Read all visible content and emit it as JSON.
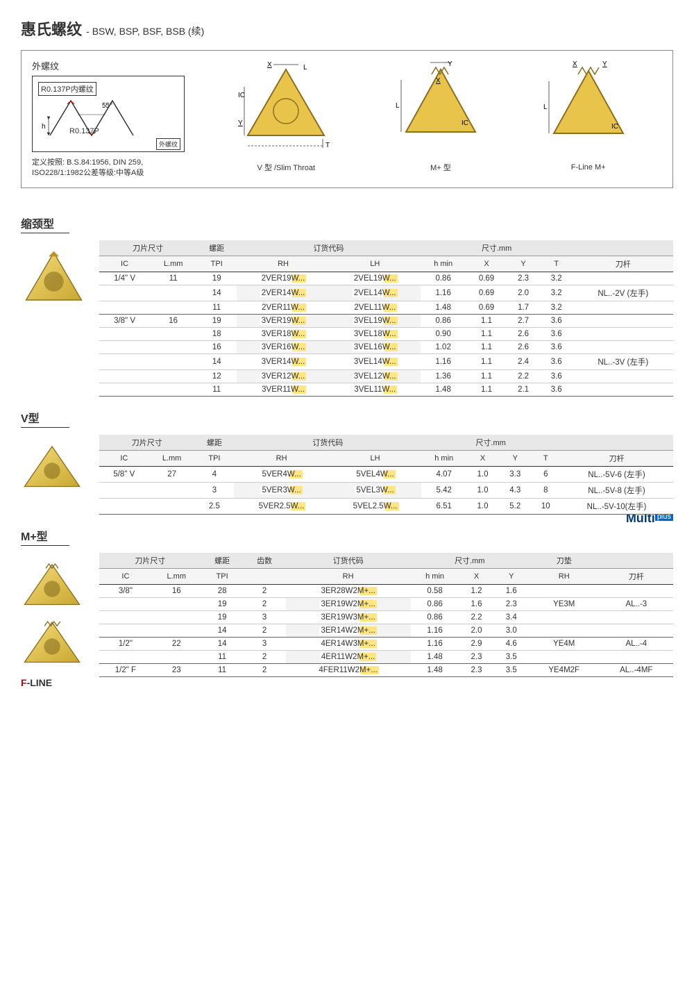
{
  "header": {
    "title": "惠氏螺纹",
    "subtitle": "- BSW, BSP, BSF, BSB (续)"
  },
  "diagram": {
    "ext_thread_label": "外螺纹",
    "inner_thread_label": "R0.137P内螺纹",
    "angle": "55°",
    "h_label": "h",
    "outer_thread_label": "R0.137P",
    "ext_label": "外螺纹",
    "def1": "定义按照: B.S.84:1956, DIN 259,",
    "def2": "ISO228/1:1982公差等级:中等A级",
    "labels": {
      "L": "L",
      "X": "X",
      "Y": "Y",
      "IC": "IC",
      "T": "T"
    },
    "type1": "V 型 /Slim Throat",
    "type2": "M+ 型",
    "type3": "F-Line M+"
  },
  "table1": {
    "title": "缩颈型",
    "headers": {
      "size": "刀片尺寸",
      "pitch": "螺距",
      "order": "订货代码",
      "dim": "尺寸.mm",
      "ic": "IC",
      "lmm": "L.mm",
      "tpi": "TPI",
      "rh": "RH",
      "lh": "LH",
      "hmin": "h min",
      "x": "X",
      "y": "Y",
      "t": "T",
      "tool": "刀杆"
    },
    "rows": [
      {
        "ic": "1/4\" V",
        "lmm": "11",
        "tpi": "19",
        "rh": "2VER19W...",
        "lh": "2VEL19W...",
        "hmin": "0.86",
        "x": "0.69",
        "y": "2.3",
        "t": "3.2",
        "tool": ""
      },
      {
        "ic": "",
        "lmm": "",
        "tpi": "14",
        "rh": "2VER14W...",
        "lh": "2VEL14W...",
        "hmin": "1.16",
        "x": "0.69",
        "y": "2.0",
        "t": "3.2",
        "tool": "NL..-2V (左手)"
      },
      {
        "ic": "",
        "lmm": "",
        "tpi": "11",
        "rh": "2VER11W...",
        "lh": "2VEL11W...",
        "hmin": "1.48",
        "x": "0.69",
        "y": "1.7",
        "t": "3.2",
        "tool": "",
        "end": true
      },
      {
        "ic": "3/8\" V",
        "lmm": "16",
        "tpi": "19",
        "rh": "3VER19W...",
        "lh": "3VEL19W...",
        "hmin": "0.86",
        "x": "1.1",
        "y": "2.7",
        "t": "3.6",
        "tool": ""
      },
      {
        "ic": "",
        "lmm": "",
        "tpi": "18",
        "rh": "3VER18W...",
        "lh": "3VEL18W...",
        "hmin": "0.90",
        "x": "1.1",
        "y": "2.6",
        "t": "3.6",
        "tool": ""
      },
      {
        "ic": "",
        "lmm": "",
        "tpi": "16",
        "rh": "3VER16W...",
        "lh": "3VEL16W...",
        "hmin": "1.02",
        "x": "1.1",
        "y": "2.6",
        "t": "3.6",
        "tool": ""
      },
      {
        "ic": "",
        "lmm": "",
        "tpi": "14",
        "rh": "3VER14W...",
        "lh": "3VEL14W...",
        "hmin": "1.16",
        "x": "1.1",
        "y": "2.4",
        "t": "3.6",
        "tool": "NL..-3V (左手)"
      },
      {
        "ic": "",
        "lmm": "",
        "tpi": "12",
        "rh": "3VER12W...",
        "lh": "3VEL12W...",
        "hmin": "1.36",
        "x": "1.1",
        "y": "2.2",
        "t": "3.6",
        "tool": ""
      },
      {
        "ic": "",
        "lmm": "",
        "tpi": "11",
        "rh": "3VER11W...",
        "lh": "3VEL11W...",
        "hmin": "1.48",
        "x": "1.1",
        "y": "2.1",
        "t": "3.6",
        "tool": "",
        "end": true
      }
    ]
  },
  "table2": {
    "title": "V型",
    "headers": {
      "size": "刀片尺寸",
      "pitch": "螺距",
      "order": "订货代码",
      "dim": "尺寸.mm",
      "ic": "IC",
      "lmm": "L.mm",
      "tpi": "TPI",
      "rh": "RH",
      "lh": "LH",
      "hmin": "h min",
      "x": "X",
      "y": "Y",
      "t": "T",
      "tool": "刀杆"
    },
    "rows": [
      {
        "ic": "5/8\" V",
        "lmm": "27",
        "tpi": "4",
        "rh": "5VER4W...",
        "lh": "5VEL4W...",
        "hmin": "4.07",
        "x": "1.0",
        "y": "3.3",
        "t": "6",
        "tool": "NL..-5V-6 (左手)"
      },
      {
        "ic": "",
        "lmm": "",
        "tpi": "3",
        "rh": "5VER3W...",
        "lh": "5VEL3W...",
        "hmin": "5.42",
        "x": "1.0",
        "y": "4.3",
        "t": "8",
        "tool": "NL..-5V-8 (左手)"
      },
      {
        "ic": "",
        "lmm": "",
        "tpi": "2.5",
        "rh": "5VER2.5W...",
        "lh": "5VEL2.5W...",
        "hmin": "6.51",
        "x": "1.0",
        "y": "5.2",
        "t": "10",
        "tool": "NL..-5V-10(左手)",
        "end": true
      }
    ]
  },
  "table3": {
    "title": "M+型",
    "logo": "Multi",
    "logo_plus": "plus",
    "headers": {
      "size": "刀片尺寸",
      "pitch": "螺距",
      "teeth": "齿数",
      "order": "订货代码",
      "dim": "尺寸.mm",
      "pad": "刀垫",
      "ic": "IC",
      "lmm": "L.mm",
      "tpi": "TPI",
      "rh": "RH",
      "hmin": "h min",
      "x": "X",
      "y": "Y",
      "rhpad": "RH",
      "tool": "刀杆"
    },
    "rows": [
      {
        "ic": "3/8\"",
        "lmm": "16",
        "tpi": "28",
        "teeth": "2",
        "rh": "3ER28W2M+...",
        "hmin": "0.58",
        "x": "1.2",
        "y": "1.6",
        "pad": "",
        "tool": ""
      },
      {
        "ic": "",
        "lmm": "",
        "tpi": "19",
        "teeth": "2",
        "rh": "3ER19W2M+...",
        "hmin": "0.86",
        "x": "1.6",
        "y": "2.3",
        "pad": "YE3M",
        "tool": "AL..-3"
      },
      {
        "ic": "",
        "lmm": "",
        "tpi": "19",
        "teeth": "3",
        "rh": "3ER19W3M+...",
        "hmin": "0.86",
        "x": "2.2",
        "y": "3.4",
        "pad": "",
        "tool": ""
      },
      {
        "ic": "",
        "lmm": "",
        "tpi": "14",
        "teeth": "2",
        "rh": "3ER14W2M+...",
        "hmin": "1.16",
        "x": "2.0",
        "y": "3.0",
        "pad": "",
        "tool": "",
        "end": true
      },
      {
        "ic": "1/2\"",
        "lmm": "22",
        "tpi": "14",
        "teeth": "3",
        "rh": "4ER14W3M+...",
        "hmin": "1.16",
        "x": "2.9",
        "y": "4.6",
        "pad": "YE4M",
        "tool": "AL..-4"
      },
      {
        "ic": "",
        "lmm": "",
        "tpi": "11",
        "teeth": "2",
        "rh": "4ER11W2M+...",
        "hmin": "1.48",
        "x": "2.3",
        "y": "3.5",
        "pad": "",
        "tool": "",
        "end": true
      },
      {
        "ic": "1/2\" F",
        "lmm": "23",
        "tpi": "11",
        "teeth": "2",
        "rh": "4FER11W2M+...",
        "hmin": "1.48",
        "x": "2.3",
        "y": "3.5",
        "pad": "YE4M2F",
        "tool": "AL..-4MF",
        "end": true
      }
    ],
    "fline": "F-LINE"
  },
  "colors": {
    "insert_gold": "#e8c44a",
    "insert_dark": "#c9a830",
    "hl": "#ffe680"
  }
}
